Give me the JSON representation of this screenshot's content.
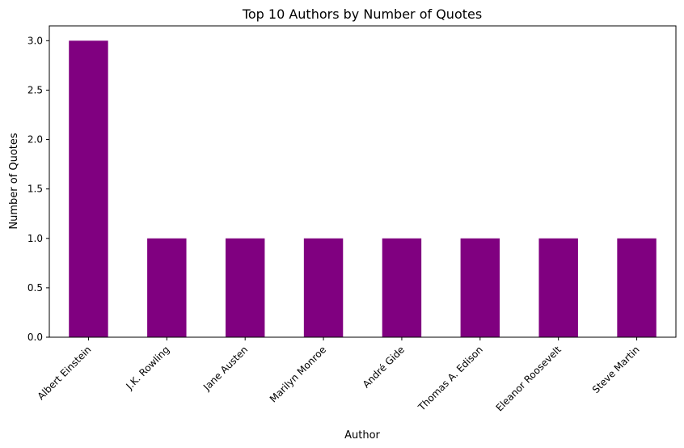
{
  "chart_data": {
    "type": "bar",
    "title": "Top 10 Authors by Number of Quotes",
    "xlabel": "Author",
    "ylabel": "Number of Quotes",
    "categories": [
      "Albert Einstein",
      "J.K. Rowling",
      "Jane Austen",
      "Marilyn Monroe",
      "André Gide",
      "Thomas A. Edison",
      "Eleanor Roosevelt",
      "Steve Martin"
    ],
    "values": [
      3,
      1,
      1,
      1,
      1,
      1,
      1,
      1
    ],
    "ylim": [
      0,
      3.15
    ],
    "yticks": [
      "0.0",
      "0.5",
      "1.0",
      "1.5",
      "2.0",
      "2.5",
      "3.0"
    ],
    "bar_color": "#800080",
    "grid": false,
    "legend": "none"
  }
}
